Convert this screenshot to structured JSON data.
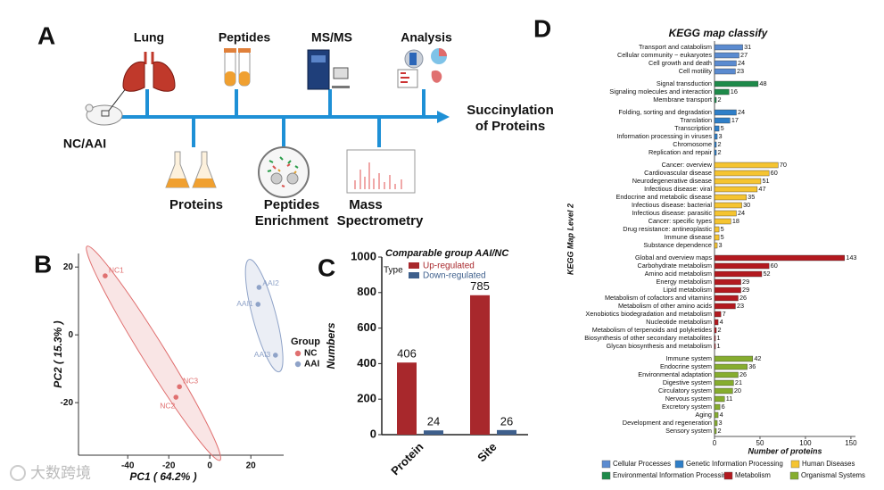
{
  "panel_labels": [
    "A",
    "B",
    "C",
    "D"
  ],
  "workflow": {
    "start": "NC/AAI",
    "top_steps": [
      "Lung",
      "Peptides",
      "MS/MS",
      "Analysis"
    ],
    "bottom_steps": [
      [
        "Proteins"
      ],
      [
        "Peptides",
        "Enrichment"
      ],
      [
        "Mass",
        "Spectrometry"
      ]
    ],
    "end": [
      "Succinylation",
      "of Proteins"
    ]
  },
  "watermark": "大数跨境",
  "chart_data": [
    {
      "type": "scatter",
      "xlabel": "PC1 ( 64.2% )",
      "ylabel": "PC2 ( 15.3% )",
      "legend_title": "Group",
      "xlim": [
        -64,
        36
      ],
      "ylim": [
        -35.5,
        24
      ],
      "xticks": [
        -40,
        -20,
        0,
        20
      ],
      "yticks": [
        -20,
        0,
        20
      ],
      "series": [
        {
          "name": "NC",
          "color": "#e07070",
          "labels": [
            "NC1",
            "NC3",
            "NC2"
          ],
          "x": [
            -51,
            -14.8,
            -16.5
          ],
          "values": [
            17.4,
            -15.3,
            -18.4
          ]
        },
        {
          "name": "AAI",
          "color": "#8fa3c8",
          "labels": [
            "AAI2",
            "AAI1",
            "AAI3"
          ],
          "x": [
            24,
            23.5,
            32
          ],
          "values": [
            14,
            9,
            -6
          ]
        }
      ]
    },
    {
      "type": "bar",
      "title": "Comparable group AAI/NC",
      "ylabel": "Numbers",
      "legend_title": "Type",
      "categories": [
        "Protein",
        "Site"
      ],
      "ylim": [
        0,
        1000
      ],
      "yticks": [
        0,
        200,
        400,
        600,
        800,
        1000
      ],
      "series": [
        {
          "name": "Up-regulated",
          "color": "#a8282c",
          "values": [
            406,
            785
          ]
        },
        {
          "name": "Down-regulated",
          "color": "#3e5f8c",
          "values": [
            24,
            26
          ]
        }
      ]
    },
    {
      "type": "barh",
      "title": "KEGG map classify",
      "xlabel": "Number of proteins",
      "ylabel": "KEGG Map Level 2",
      "xlim": [
        0,
        155
      ],
      "xticks": [
        0,
        50,
        100,
        150
      ],
      "series": [
        {
          "name": "Cellular Processes",
          "color": "#5b8bd0",
          "categories": [
            "Transport and catabolism",
            "Cellular community − eukaryotes",
            "Cell growth and death",
            "Cell motility"
          ],
          "values": [
            31,
            27,
            24,
            23
          ]
        },
        {
          "name": "Environmental Information Processing",
          "color": "#1e8a4a",
          "categories": [
            "Signal transduction",
            "Signaling molecules and interaction",
            "Membrane transport"
          ],
          "values": [
            48,
            16,
            2
          ]
        },
        {
          "name": "Genetic Information Processing",
          "color": "#2f7fc8",
          "categories": [
            "Folding, sorting and degradation",
            "Translation",
            "Transcription",
            "Information processing in viruses",
            "Chromosome",
            "Replication and repair"
          ],
          "values": [
            24,
            17,
            5,
            3,
            2,
            2
          ]
        },
        {
          "name": "Human Diseases",
          "color": "#f5c431",
          "categories": [
            "Cancer: overview",
            "Cardiovascular disease",
            "Neurodegenerative disease",
            "Infectious disease: viral",
            "Endocrine and metabolic disease",
            "Infectious disease: bacterial",
            "Infectious disease: parasitic",
            "Cancer: specific types",
            "Drug resistance: antineoplastic",
            "Immune disease",
            "Substance dependence"
          ],
          "values": [
            70,
            60,
            51,
            47,
            35,
            30,
            24,
            18,
            5,
            5,
            3
          ]
        },
        {
          "name": "Metabolism",
          "color": "#b3191f",
          "categories": [
            "Global and overview maps",
            "Carbohydrate metabolism",
            "Amino acid metabolism",
            "Energy metabolism",
            "Lipid metabolism",
            "Metabolism of cofactors and vitamins",
            "Metabolism of other amino acids",
            "Xenobiotics biodegradation and metabolism",
            "Nucleotide metabolism",
            "Metabolism of terpenoids and polyketides",
            "Biosynthesis of other secondary metabolites",
            "Glycan biosynthesis and metabolism"
          ],
          "values": [
            143,
            60,
            52,
            29,
            29,
            26,
            23,
            7,
            4,
            2,
            1,
            1
          ]
        },
        {
          "name": "Organismal Systems",
          "color": "#86ad2f",
          "categories": [
            "Immune system",
            "Endocrine system",
            "Environmental adaptation",
            "Digestive system",
            "Circulatory system",
            "Nervous system",
            "Excretory system",
            "Aging",
            "Development and regeneration",
            "Sensory system"
          ],
          "values": [
            42,
            36,
            26,
            21,
            20,
            11,
            6,
            4,
            3,
            2
          ]
        }
      ]
    }
  ]
}
